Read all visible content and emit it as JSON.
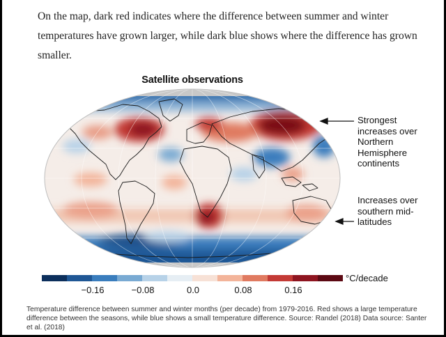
{
  "article": {
    "paragraph": "On the map, dark red indicates where the difference between summer and winter temperatures have grown larger, while dark blue shows where the difference has grown smaller."
  },
  "figure": {
    "title": "Satellite observations",
    "annotations": [
      "Strongest increases over Northern Hemisphere continents",
      "Increases over southern mid-latitudes"
    ],
    "colorbar": {
      "unit": "°C/decade",
      "ticks": [
        "−0.16",
        "−0.08",
        "0.0",
        "0.08",
        "0.16"
      ],
      "colors": [
        "#0c2f5c",
        "#1f5795",
        "#3a7dbd",
        "#79aad3",
        "#b7d2e8",
        "#e6eef4",
        "#f7e1d6",
        "#f3b49a",
        "#e07a60",
        "#c33a35",
        "#8e1520",
        "#5c0913"
      ]
    }
  },
  "caption": "Temperature difference between summer and winter months (per decade) from 1979-2016. Red shows a large temperature difference between the seasons, while blue shows a small temperature difference. Source: Randel (2018) Data source: Santer et al. (2018)"
}
